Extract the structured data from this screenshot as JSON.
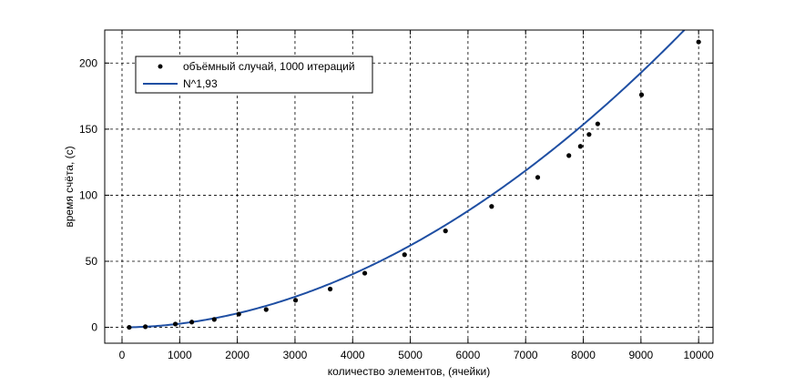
{
  "chart_data": {
    "type": "scatter",
    "title": "",
    "xlabel": "количество элементов, (ячейки)",
    "ylabel": "время счёта, (с)",
    "xlim": [
      -300,
      10250
    ],
    "ylim": [
      -12,
      225
    ],
    "xticks": [
      0,
      1000,
      2000,
      3000,
      4000,
      5000,
      6000,
      7000,
      8000,
      9000,
      10000
    ],
    "yticks": [
      0,
      50,
      100,
      150,
      200
    ],
    "grid": true,
    "legend_position": "top-left",
    "series": [
      {
        "name": "объёмный случай, 1000 итераций",
        "kind": "points",
        "color": "#000000",
        "x": [
          125,
          405,
          925,
          1210,
          1600,
          2025,
          2500,
          3010,
          3610,
          4210,
          4900,
          5610,
          6410,
          7210,
          7750,
          7950,
          8100,
          8250,
          9010,
          10000
        ],
        "y": [
          0,
          0.5,
          2.5,
          4,
          6,
          10,
          13.5,
          20.5,
          29,
          41,
          55,
          73,
          91.5,
          113.5,
          130,
          137,
          146,
          154,
          176,
          216
        ]
      },
      {
        "name": "N^1,93",
        "kind": "line",
        "color": "#1f4fa3",
        "coefficient": 4.5e-06,
        "exponent": 1.93,
        "x_range": [
          100,
          10250
        ]
      }
    ]
  }
}
